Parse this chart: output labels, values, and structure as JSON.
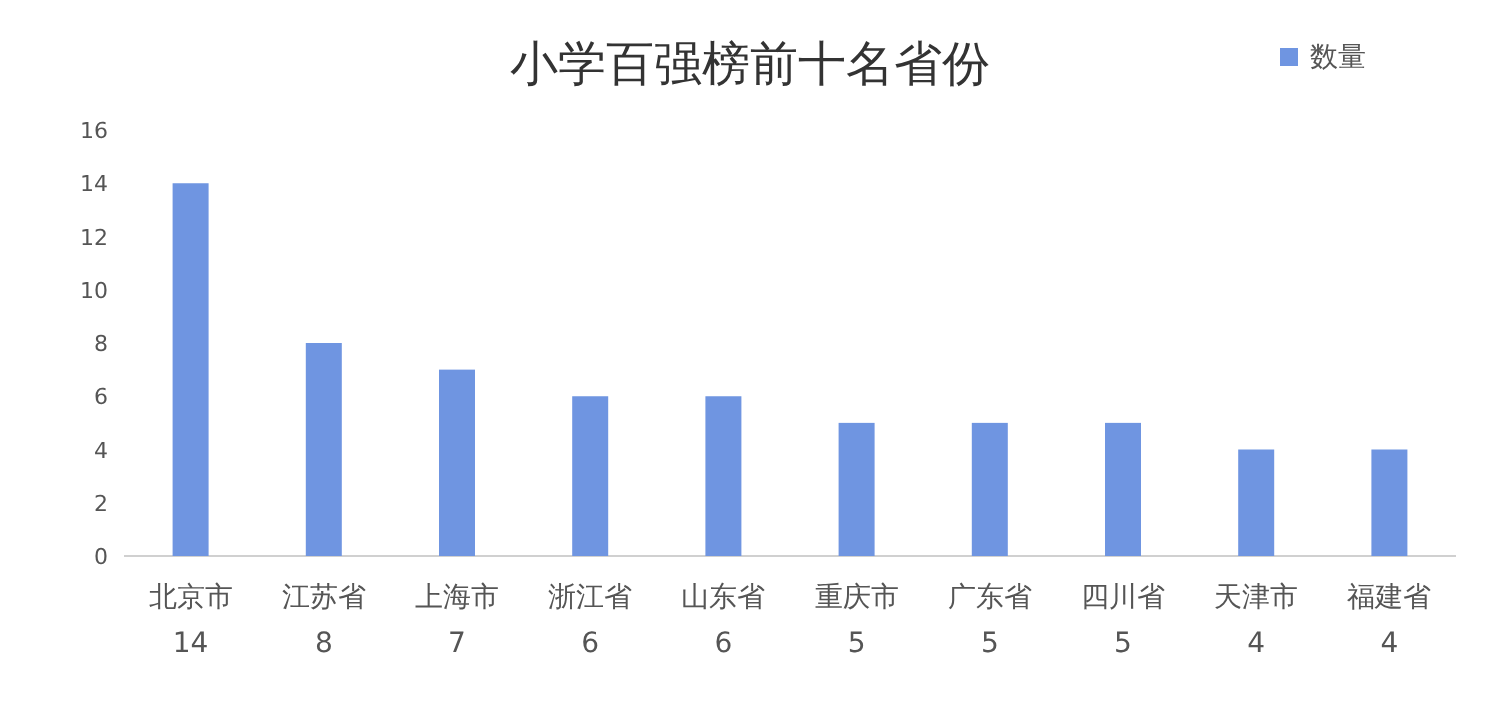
{
  "chart_data": {
    "type": "bar",
    "title": "小学百强榜前十名省份",
    "categories": [
      "北京市",
      "江苏省",
      "上海市",
      "浙江省",
      "山东省",
      "重庆市",
      "广东省",
      "四川省",
      "天津市",
      "福建省"
    ],
    "series": [
      {
        "name": "数量",
        "color": "#6f95e1",
        "values": [
          14,
          8,
          7,
          6,
          6,
          5,
          5,
          5,
          4,
          4
        ]
      }
    ],
    "ylim": [
      0,
      16
    ],
    "yticks": [
      0,
      2,
      4,
      6,
      8,
      10,
      12,
      14,
      16
    ],
    "data_labels": true,
    "legend": "top right"
  }
}
